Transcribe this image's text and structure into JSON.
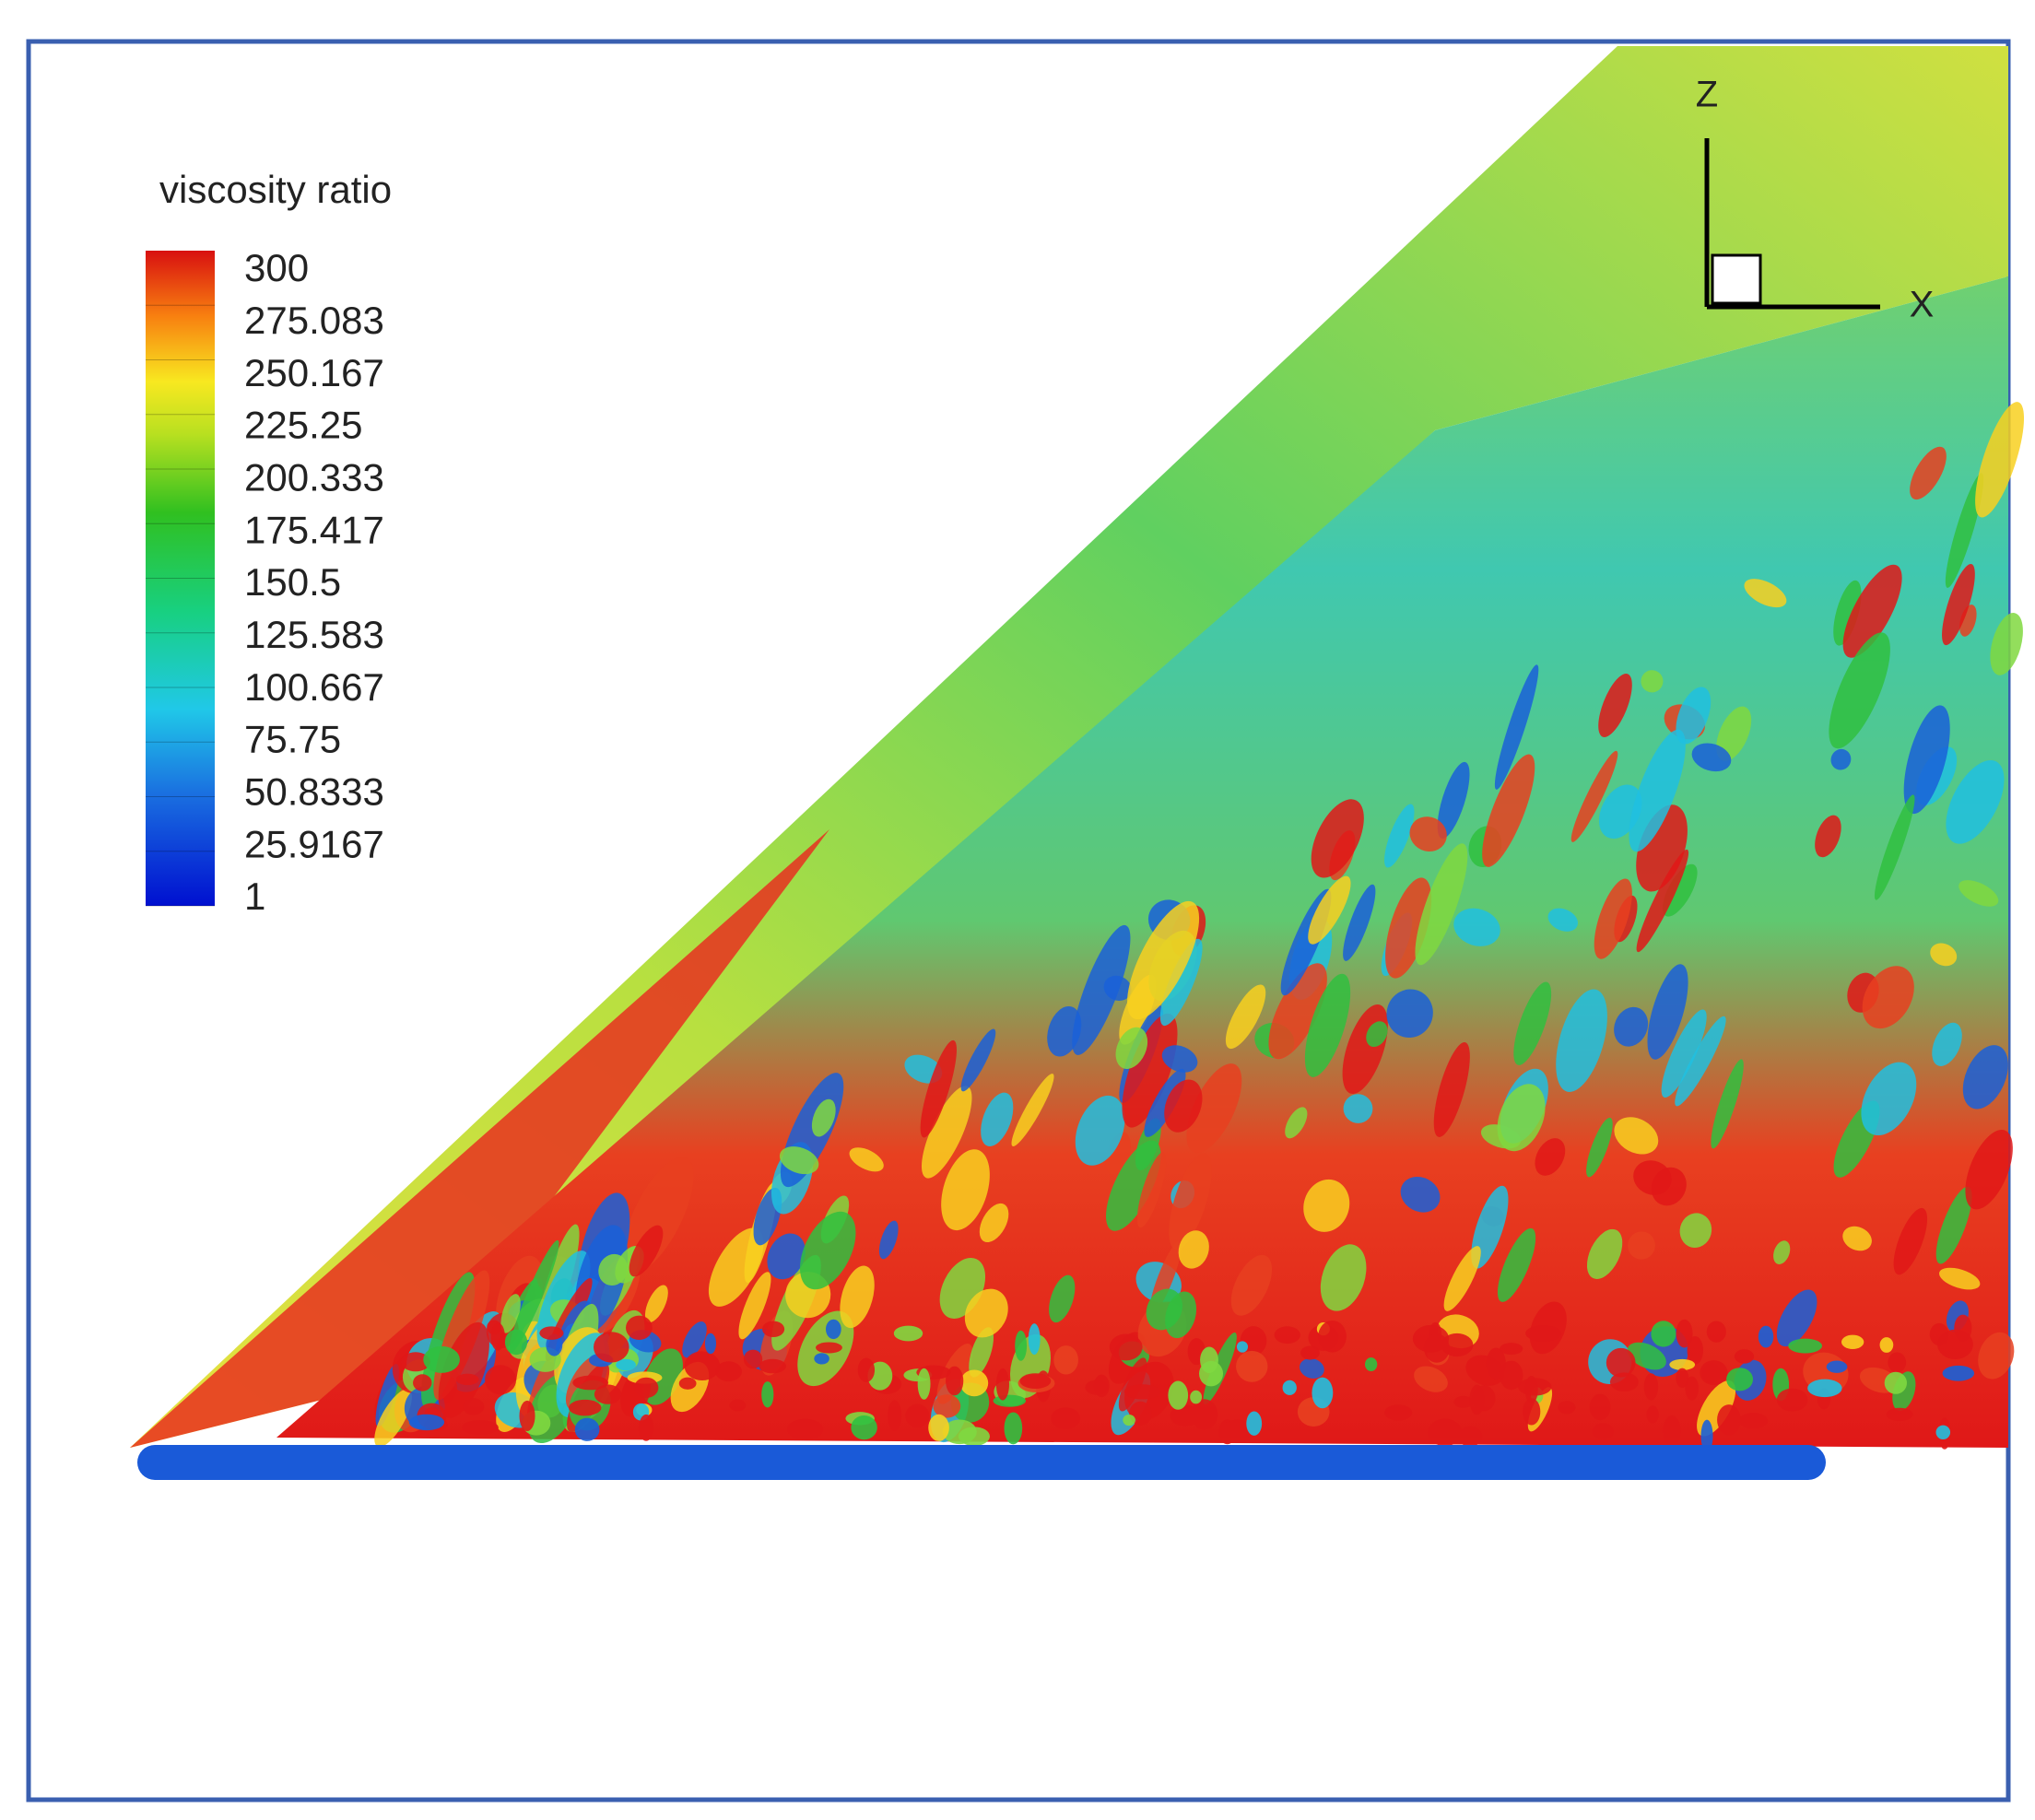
{
  "legend": {
    "title": "viscosity ratio",
    "labels": [
      "300",
      "275.083",
      "250.167",
      "225.25",
      "200.333",
      "175.417",
      "150.5",
      "125.583",
      "100.667",
      "75.75",
      "50.8333",
      "25.9167",
      "1"
    ]
  },
  "axes": {
    "z": "Z",
    "x": "X"
  }
}
